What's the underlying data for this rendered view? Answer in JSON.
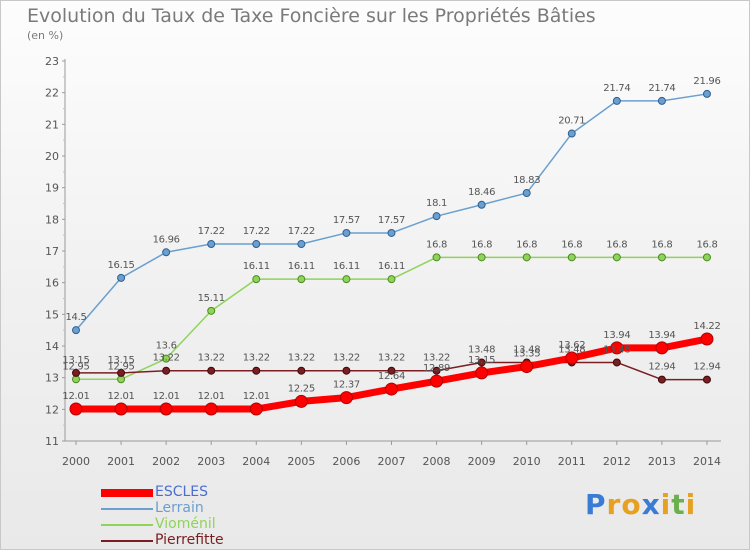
{
  "title": "Evolution du Taux de Taxe Foncière sur les Propriétés Bâties",
  "subtitle": "(en %)",
  "brand": {
    "letters": [
      "P",
      "r",
      "o",
      "x",
      "i",
      "t",
      "i"
    ],
    "colors": [
      "#3a7bd5",
      "#e8a020",
      "#e8a020",
      "#3a7bd5",
      "#e8a020",
      "#6ab04c",
      "#e8a020"
    ]
  },
  "chart_data": {
    "type": "line",
    "title": "Evolution du Taux de Taxe Foncière sur les Propriétés Bâties",
    "ylabel": "(en %)",
    "xlabel": "",
    "x": [
      "2000",
      "2001",
      "2002",
      "2003",
      "2004",
      "2005",
      "2006",
      "2007",
      "2008",
      "2009",
      "2010",
      "2011",
      "2012",
      "2013",
      "2014"
    ],
    "ylim": [
      11,
      23
    ],
    "yticks": [
      "11",
      "12",
      "13",
      "14",
      "15",
      "16",
      "17",
      "18",
      "19",
      "20",
      "21",
      "22",
      "23"
    ],
    "grid": false,
    "legend_position": "bottom-left",
    "series": [
      {
        "name": "ESCLES",
        "color": "#ff0000",
        "values": [
          12.01,
          12.01,
          12.01,
          12.01,
          12.01,
          12.25,
          12.37,
          12.64,
          12.89,
          13.15,
          13.35,
          13.62,
          13.94,
          13.94,
          14.22
        ],
        "labels": [
          "12.01",
          "12.01",
          "12.01",
          "12.01",
          "12.01",
          "12.25",
          "12.37",
          "12.64",
          "12.89",
          "13.15",
          "13.35",
          "13.62",
          "13.94",
          "13.94",
          "14.22"
        ]
      },
      {
        "name": "Lerrain",
        "color": "#6a9fcf",
        "values": [
          14.5,
          16.15,
          16.96,
          17.22,
          17.22,
          17.22,
          17.57,
          17.57,
          18.1,
          18.46,
          18.83,
          20.71,
          21.74,
          21.74,
          21.96
        ],
        "labels": [
          "14.5",
          "16.15",
          "16.96",
          "17.22",
          "17.22",
          "17.22",
          "17.57",
          "17.57",
          "18.1",
          "18.46",
          "18.83",
          "20.71",
          "21.74",
          "21.74",
          "21.96"
        ]
      },
      {
        "name": "Vioménil",
        "color": "#8fd45a",
        "values": [
          12.95,
          12.95,
          13.6,
          15.11,
          16.11,
          16.11,
          16.11,
          16.11,
          16.8,
          16.8,
          16.8,
          16.8,
          16.8,
          16.8,
          16.8
        ],
        "labels": [
          "12.95",
          "12.95",
          "13.6",
          "15.11",
          "16.11",
          "16.11",
          "16.11",
          "16.11",
          "16.8",
          "16.8",
          "16.8",
          "16.8",
          "16.8",
          "16.8",
          "16.8"
        ]
      },
      {
        "name": "Pierrefitte",
        "color": "#7a1e22",
        "values": [
          13.15,
          13.15,
          13.22,
          13.22,
          13.22,
          13.22,
          13.22,
          13.22,
          13.22,
          13.48,
          13.48,
          13.48,
          13.48,
          12.94,
          12.94
        ],
        "labels": [
          "13.15",
          "13.15",
          "13.22",
          "13.22",
          "13.22",
          "13.22",
          "13.22",
          "13.22",
          "13.22",
          "13.48",
          "13.48",
          "13.48",
          "13.48",
          "12.94",
          "12.94"
        ]
      }
    ]
  }
}
